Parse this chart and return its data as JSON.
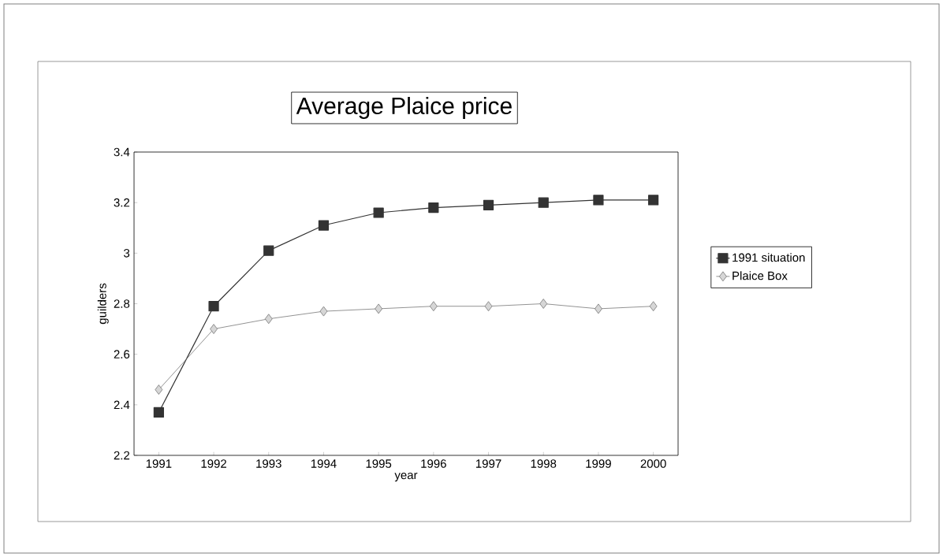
{
  "chart_data": {
    "type": "line",
    "title": "Average Plaice price",
    "xlabel": "year",
    "ylabel": "guilders",
    "categories": [
      "1991",
      "1992",
      "1993",
      "1994",
      "1995",
      "1996",
      "1997",
      "1998",
      "1999",
      "2000"
    ],
    "series": [
      {
        "name": "1991 situation",
        "color": "#333333",
        "marker": "square",
        "values": [
          2.37,
          2.79,
          3.01,
          3.11,
          3.16,
          3.18,
          3.19,
          3.2,
          3.21,
          3.21
        ]
      },
      {
        "name": "Plaice Box",
        "color": "#777777",
        "marker": "diamond",
        "values": [
          2.46,
          2.7,
          2.74,
          2.77,
          2.78,
          2.79,
          2.79,
          2.8,
          2.78,
          2.79
        ]
      }
    ],
    "ylim": [
      2.2,
      3.4
    ],
    "yticks": [
      2.2,
      2.4,
      2.6,
      2.8,
      3,
      3.2,
      3.4
    ],
    "grid": false,
    "legend": "right"
  }
}
